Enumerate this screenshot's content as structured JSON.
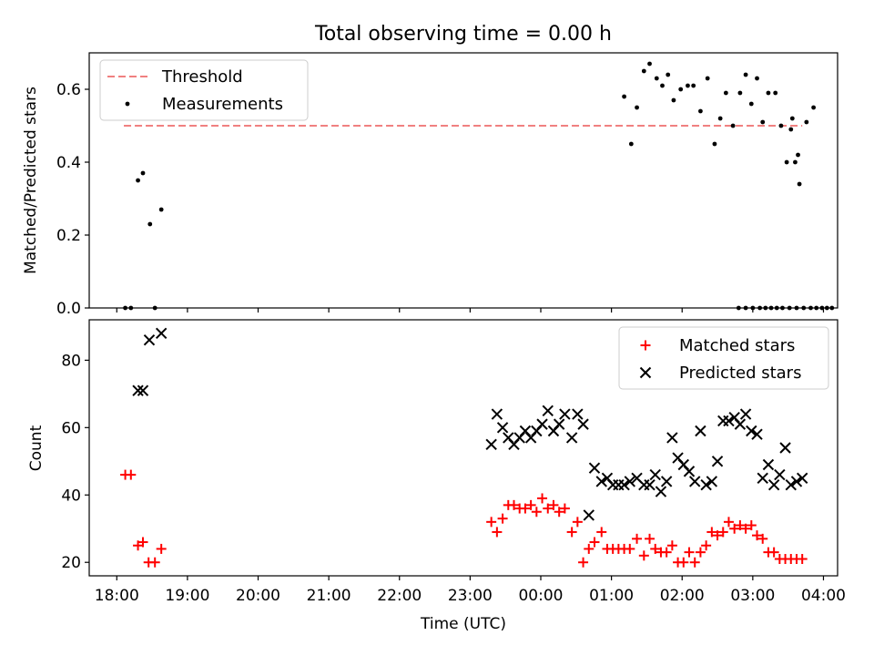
{
  "figure_title": "Total observing time = 0.00 h",
  "colors": {
    "threshold": "#f08080",
    "measurements": "#000000",
    "matched": "#ff0000",
    "predicted": "#000000"
  },
  "chart_data": [
    {
      "type": "scatter",
      "title": "Total observing time = 0.00 h",
      "xlabel": "",
      "ylabel": "Matched/Predicted stars",
      "xlim": [
        -0.39,
        10.2
      ],
      "ylim": [
        0.0,
        0.7
      ],
      "yticks": [
        0.0,
        0.2,
        0.4,
        0.6
      ],
      "ytick_labels": [
        "0.0",
        "0.2",
        "0.4",
        "0.6"
      ],
      "grid": false,
      "legend": {
        "position": "upper-left",
        "entries": [
          "Threshold",
          "Measurements"
        ]
      },
      "threshold": {
        "name": "Threshold",
        "value": 0.5,
        "x_range": [
          0.1,
          9.7
        ],
        "style": "dashed"
      },
      "series": [
        {
          "name": "Measurements",
          "marker": "dot",
          "x": [
            0.12,
            0.2,
            0.3,
            0.37,
            0.47,
            0.54,
            0.63,
            7.18,
            7.28,
            7.36,
            7.46,
            7.54,
            7.64,
            7.72,
            7.8,
            7.88,
            7.98,
            8.08,
            8.16,
            8.26,
            8.36,
            8.46,
            8.54,
            8.62,
            8.72,
            8.82,
            8.9,
            8.98,
            9.06,
            9.14,
            9.22,
            9.32,
            9.4,
            9.48,
            9.54,
            9.6,
            9.64,
            8.8,
            8.9,
            9.0,
            9.1,
            9.18,
            9.26,
            9.34,
            9.42,
            9.52,
            9.62,
            9.72,
            9.82,
            9.9,
            9.98,
            10.05,
            10.12,
            9.56,
            9.66,
            9.76,
            9.86
          ],
          "y": [
            0.0,
            0.0,
            0.35,
            0.37,
            0.23,
            0.0,
            0.27,
            0.58,
            0.45,
            0.55,
            0.65,
            0.67,
            0.63,
            0.61,
            0.64,
            0.57,
            0.6,
            0.61,
            0.61,
            0.54,
            0.63,
            0.45,
            0.52,
            0.59,
            0.5,
            0.59,
            0.64,
            0.56,
            0.63,
            0.51,
            0.59,
            0.59,
            0.5,
            0.4,
            0.49,
            0.4,
            0.42,
            0.0,
            0.0,
            0.0,
            0.0,
            0.0,
            0.0,
            0.0,
            0.0,
            0.0,
            0.0,
            0.0,
            0.0,
            0.0,
            0.0,
            0.0,
            0.0,
            0.52,
            0.34,
            0.51,
            0.55
          ]
        }
      ]
    },
    {
      "type": "scatter",
      "title": "",
      "xlabel": "Time (UTC)",
      "ylabel": "Count",
      "xlim": [
        -0.39,
        10.2
      ],
      "ylim": [
        16,
        92
      ],
      "yticks": [
        20,
        40,
        60,
        80
      ],
      "ytick_labels": [
        "20",
        "40",
        "60",
        "80"
      ],
      "xticks": [
        0,
        1,
        2,
        3,
        4,
        5,
        6,
        7,
        8,
        9,
        10
      ],
      "xtick_labels": [
        "18:00",
        "19:00",
        "20:00",
        "21:00",
        "22:00",
        "23:00",
        "00:00",
        "01:00",
        "02:00",
        "03:00",
        "04:00"
      ],
      "grid": false,
      "legend": {
        "position": "upper-right",
        "entries": [
          "Matched stars",
          "Predicted stars"
        ]
      },
      "series": [
        {
          "name": "Matched stars",
          "marker": "plus",
          "x": [
            0.12,
            0.2,
            0.3,
            0.37,
            0.45,
            0.54,
            0.63,
            5.3,
            5.38,
            5.46,
            5.54,
            5.62,
            5.7,
            5.78,
            5.86,
            5.94,
            6.02,
            6.1,
            6.18,
            6.26,
            6.34,
            6.44,
            6.52,
            6.6,
            6.68,
            6.76,
            6.86,
            6.94,
            7.02,
            7.1,
            7.18,
            7.26,
            7.36,
            7.46,
            7.54,
            7.62,
            7.7,
            7.78,
            7.86,
            7.94,
            8.02,
            8.1,
            8.18,
            8.26,
            8.34,
            8.42,
            8.5,
            8.58,
            8.66,
            8.74,
            8.82,
            8.9,
            8.98,
            9.06,
            9.14,
            9.22,
            9.3,
            9.38,
            9.46,
            9.54,
            9.62,
            9.7
          ],
          "y": [
            46,
            46,
            25,
            26,
            20,
            20,
            24,
            32,
            29,
            33,
            37,
            37,
            36,
            36,
            37,
            35,
            39,
            36,
            37,
            35,
            36,
            29,
            32,
            20,
            24,
            26,
            29,
            24,
            24,
            24,
            24,
            24,
            27,
            22,
            27,
            24,
            23,
            23,
            25,
            20,
            20,
            23,
            20,
            23,
            25,
            29,
            28,
            29,
            32,
            30,
            31,
            30,
            31,
            28,
            27,
            23,
            23,
            21,
            21,
            21,
            21,
            21
          ]
        },
        {
          "name": "Predicted stars",
          "marker": "x",
          "x": [
            0.3,
            0.37,
            0.46,
            0.63,
            5.3,
            5.38,
            5.46,
            5.54,
            5.62,
            5.7,
            5.78,
            5.86,
            5.94,
            6.02,
            6.1,
            6.18,
            6.26,
            6.34,
            6.44,
            6.52,
            6.6,
            6.68,
            6.76,
            6.86,
            6.94,
            7.02,
            7.1,
            7.18,
            7.26,
            7.36,
            7.46,
            7.54,
            7.62,
            7.7,
            7.78,
            7.86,
            7.94,
            8.02,
            8.1,
            8.18,
            8.26,
            8.34,
            8.42,
            8.5,
            8.58,
            8.66,
            8.74,
            8.82,
            8.9,
            8.98,
            9.06,
            9.14,
            9.22,
            9.3,
            9.38,
            9.46,
            9.54,
            9.62,
            9.7
          ],
          "y": [
            71,
            71,
            86,
            88,
            55,
            64,
            60,
            57,
            55,
            57,
            59,
            57,
            59,
            61,
            65,
            59,
            61,
            64,
            57,
            64,
            61,
            34,
            48,
            44,
            45,
            43,
            43,
            43,
            44,
            45,
            43,
            43,
            46,
            41,
            44,
            57,
            51,
            49,
            47,
            44,
            59,
            43,
            44,
            50,
            62,
            62,
            63,
            61,
            64,
            59,
            58,
            45,
            49,
            43,
            46,
            54,
            43,
            44,
            45
          ]
        }
      ]
    }
  ]
}
